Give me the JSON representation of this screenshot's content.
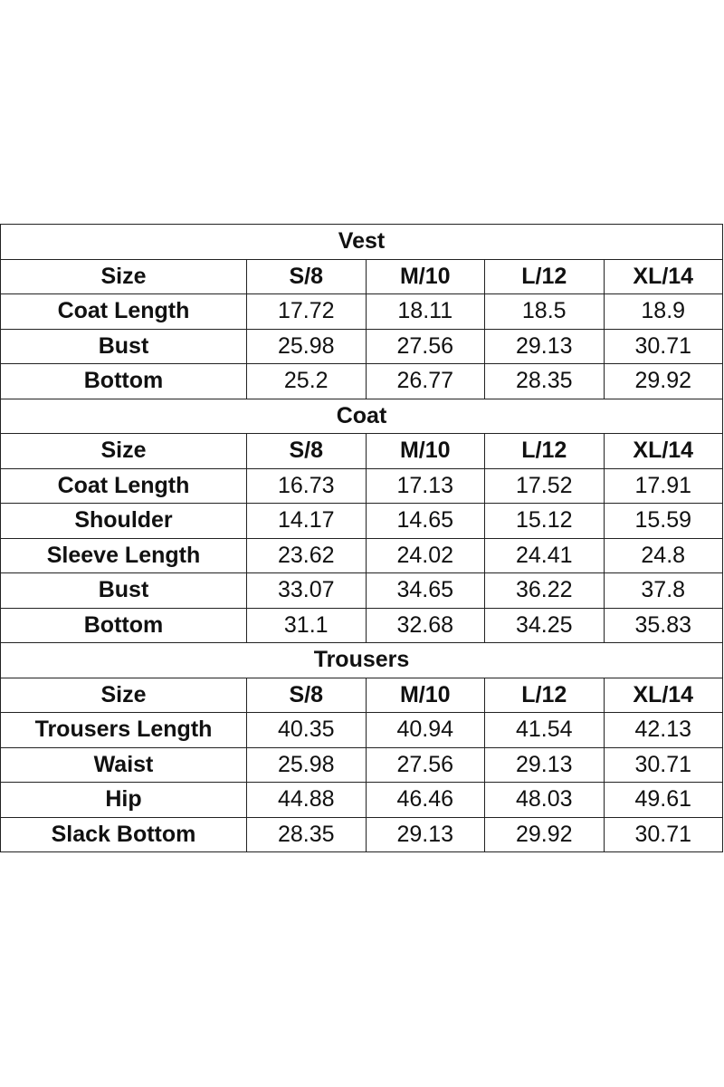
{
  "sections": [
    {
      "title": "Vest",
      "header": [
        "Size",
        "S/8",
        "M/10",
        "L/12",
        "XL/14"
      ],
      "rows": [
        {
          "label": "Coat Length",
          "values": [
            17.72,
            18.11,
            18.5,
            18.9
          ]
        },
        {
          "label": "Bust",
          "values": [
            25.98,
            27.56,
            29.13,
            30.71
          ]
        },
        {
          "label": "Bottom",
          "values": [
            25.2,
            26.77,
            28.35,
            29.92
          ]
        }
      ]
    },
    {
      "title": "Coat",
      "header": [
        "Size",
        "S/8",
        "M/10",
        "L/12",
        "XL/14"
      ],
      "rows": [
        {
          "label": "Coat Length",
          "values": [
            16.73,
            17.13,
            17.52,
            17.91
          ]
        },
        {
          "label": "Shoulder",
          "values": [
            14.17,
            14.65,
            15.12,
            15.59
          ]
        },
        {
          "label": "Sleeve Length",
          "values": [
            23.62,
            24.02,
            24.41,
            24.8
          ]
        },
        {
          "label": "Bust",
          "values": [
            33.07,
            34.65,
            36.22,
            37.8
          ]
        },
        {
          "label": "Bottom",
          "values": [
            31.1,
            32.68,
            34.25,
            35.83
          ]
        }
      ]
    },
    {
      "title": "Trousers",
      "header": [
        "Size",
        "S/8",
        "M/10",
        "L/12",
        "XL/14"
      ],
      "rows": [
        {
          "label": "Trousers Length",
          "values": [
            40.35,
            40.94,
            41.54,
            42.13
          ]
        },
        {
          "label": "Waist",
          "values": [
            25.98,
            27.56,
            29.13,
            30.71
          ]
        },
        {
          "label": "Hip",
          "values": [
            44.88,
            46.46,
            48.03,
            49.61
          ]
        },
        {
          "label": "Slack Bottom",
          "values": [
            28.35,
            29.13,
            29.92,
            30.71
          ]
        }
      ]
    }
  ]
}
